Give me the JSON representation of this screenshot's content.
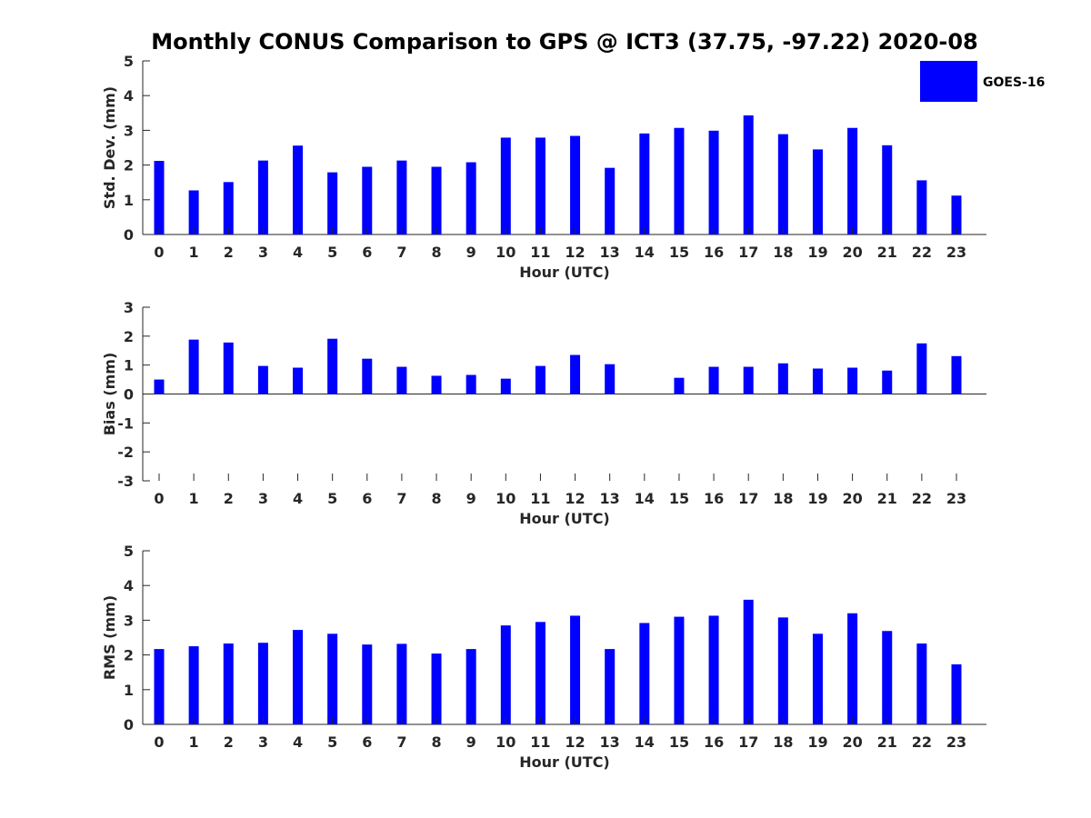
{
  "title": "Monthly CONUS Comparison to GPS @ ICT3 (37.75, -97.22) 2020-08",
  "legend": {
    "label": "GOES-16",
    "placement": "top-right"
  },
  "colors": {
    "bar": "#0000ff",
    "axis": "#262626"
  },
  "chart_data": [
    {
      "type": "bar",
      "ylabel": "Std. Dev. (mm)",
      "xlabel": "Hour (UTC)",
      "ylim": [
        0,
        5
      ],
      "yticks": [
        0,
        1,
        2,
        3,
        4,
        5
      ],
      "categories": [
        "0",
        "1",
        "2",
        "3",
        "4",
        "5",
        "6",
        "7",
        "8",
        "9",
        "10",
        "11",
        "12",
        "13",
        "14",
        "15",
        "16",
        "17",
        "18",
        "19",
        "20",
        "21",
        "22",
        "23"
      ],
      "series": [
        {
          "name": "GOES-16",
          "values": [
            2.12,
            1.27,
            1.51,
            2.13,
            2.56,
            1.79,
            1.95,
            2.13,
            1.95,
            2.08,
            2.79,
            2.79,
            2.84,
            1.92,
            2.91,
            3.07,
            2.99,
            3.43,
            2.89,
            2.45,
            3.07,
            2.57,
            1.56,
            1.12
          ]
        }
      ]
    },
    {
      "type": "bar",
      "ylabel": "Bias (mm)",
      "xlabel": "Hour (UTC)",
      "ylim": [
        -3,
        3
      ],
      "yticks": [
        -3,
        -2,
        -1,
        0,
        1,
        2,
        3
      ],
      "categories": [
        "0",
        "1",
        "2",
        "3",
        "4",
        "5",
        "6",
        "7",
        "8",
        "9",
        "10",
        "11",
        "12",
        "13",
        "14",
        "15",
        "16",
        "17",
        "18",
        "19",
        "20",
        "21",
        "22",
        "23"
      ],
      "series": [
        {
          "name": "GOES-16",
          "values": [
            0.5,
            1.88,
            1.78,
            0.97,
            0.91,
            1.91,
            1.22,
            0.94,
            0.63,
            0.66,
            0.53,
            0.97,
            1.35,
            1.03,
            0.0,
            0.56,
            0.94,
            0.94,
            1.06,
            0.88,
            0.91,
            0.81,
            1.75,
            1.31
          ]
        }
      ]
    },
    {
      "type": "bar",
      "ylabel": "RMS (mm)",
      "xlabel": "Hour (UTC)",
      "ylim": [
        0,
        5
      ],
      "yticks": [
        0,
        1,
        2,
        3,
        4,
        5
      ],
      "categories": [
        "0",
        "1",
        "2",
        "3",
        "4",
        "5",
        "6",
        "7",
        "8",
        "9",
        "10",
        "11",
        "12",
        "13",
        "14",
        "15",
        "16",
        "17",
        "18",
        "19",
        "20",
        "21",
        "22",
        "23"
      ],
      "series": [
        {
          "name": "GOES-16",
          "values": [
            2.17,
            2.25,
            2.33,
            2.35,
            2.72,
            2.61,
            2.3,
            2.32,
            2.04,
            2.17,
            2.85,
            2.95,
            3.13,
            2.17,
            2.92,
            3.1,
            3.13,
            3.59,
            3.08,
            2.61,
            3.2,
            2.69,
            2.33,
            1.73
          ]
        }
      ]
    }
  ]
}
